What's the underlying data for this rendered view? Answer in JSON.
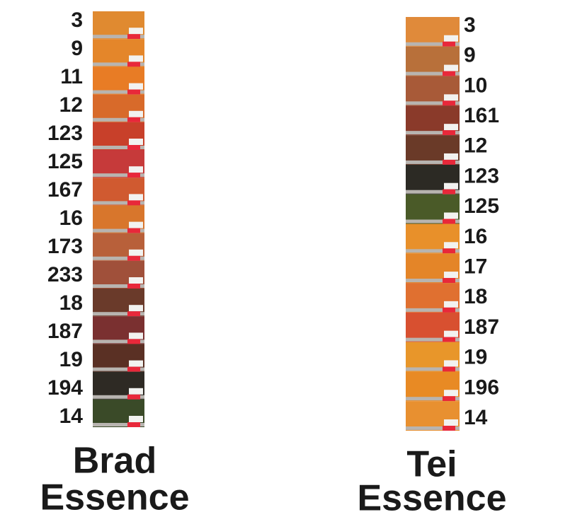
{
  "columns": [
    {
      "labels": [
        "3",
        "9",
        "11",
        "12",
        "123",
        "125",
        "167",
        "16",
        "173",
        "233",
        "18",
        "187",
        "19",
        "194",
        "14"
      ],
      "title_lines": [
        "Brad",
        "Essence"
      ]
    },
    {
      "labels": [
        "3",
        "9",
        "10",
        "161",
        "12",
        "123",
        "125",
        "16",
        "17",
        "18",
        "187",
        "19",
        "196",
        "14"
      ],
      "title_lines": [
        "Tei",
        "Essence"
      ]
    }
  ]
}
